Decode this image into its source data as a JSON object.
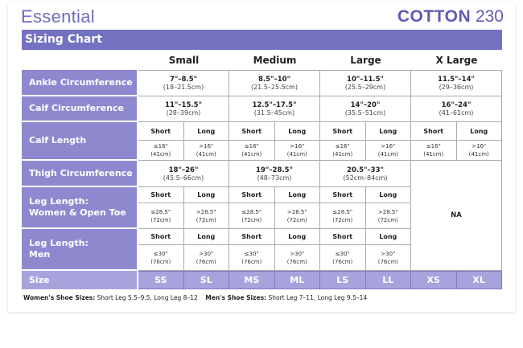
{
  "header": {
    "brand": "Essential",
    "product_bold": "COTTON",
    "product_num": "230",
    "title": "Sizing Chart"
  },
  "colors": {
    "accent": "#7471c1",
    "label_bg": "#8e89cf",
    "size_bg": "#a7a3dc"
  },
  "sizes": [
    "Small",
    "Medium",
    "Large",
    "X Large"
  ],
  "rows": {
    "ankle": {
      "label": "Ankle Circumference",
      "values": [
        [
          "7\"–8.5\"",
          "(18–21.5cm)"
        ],
        [
          "8.5\"–10\"",
          "(21.5–25.5cm)"
        ],
        [
          "10\"–11.5\"",
          "(25.5–29cm)"
        ],
        [
          "11.5\"–14\"",
          "(29–36cm)"
        ]
      ]
    },
    "calf": {
      "label": "Calf Circumference",
      "values": [
        [
          "11\"–15.5\"",
          "(28–39cm)"
        ],
        [
          "12.5\"–17.5\"",
          "(31.5–45cm)"
        ],
        [
          "14\"–20\"",
          "(35.5–51cm)"
        ],
        [
          "16\"–24\"",
          "(41–61cm)"
        ]
      ]
    },
    "calf_length": {
      "label": "Calf Length",
      "short": "Short",
      "long": "Long",
      "short_value": [
        "≤16\"",
        "(41cm)"
      ],
      "long_value": [
        ">16\"",
        "(41cm)"
      ]
    },
    "thigh": {
      "label": "Thigh Circumference",
      "values": [
        [
          "18\"–26\"",
          "(45.5–66cm)"
        ],
        [
          "19\"–28.5\"",
          "(48–73cm)"
        ],
        [
          "20.5\"–33\"",
          "(52cm–84cm)"
        ]
      ]
    },
    "leg_women": {
      "label": [
        "Leg Length:",
        "Women & Open Toe"
      ],
      "short": "Short",
      "long": "Long",
      "short_value": [
        "≤28.5\"",
        "(72cm)"
      ],
      "long_value": [
        ">28.5\"",
        "(72cm)"
      ]
    },
    "leg_men": {
      "label": [
        "Leg Length:",
        "Men"
      ],
      "short": "Short",
      "long": "Long",
      "short_value": [
        "≤30\"",
        "(76cm)"
      ],
      "long_value": [
        ">30\"",
        "(76cm)"
      ]
    },
    "na": "NA",
    "size": {
      "label": "Size",
      "codes": [
        "SS",
        "SL",
        "MS",
        "ML",
        "LS",
        "LL",
        "XS",
        "XL"
      ]
    }
  },
  "footer": {
    "women_label": "Women's Shoe Sizes:",
    "women_text": "Short Leg 5.5–9.5, Long Leg 8–12",
    "men_label": "Men's Shoe Sizes:",
    "men_text": "Short Leg 7–11, Long Leg 9.5–14"
  }
}
